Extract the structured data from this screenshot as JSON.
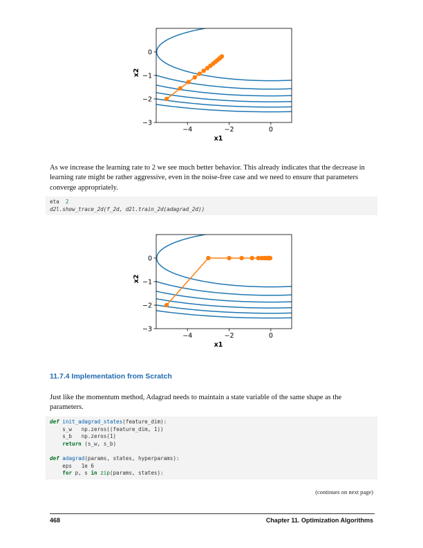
{
  "chart_data": [
    {
      "type": "line",
      "title": "",
      "xlabel": "x1",
      "ylabel": "x2",
      "xlim": [
        -5.5,
        1.0
      ],
      "ylim": [
        -3.0,
        1.0
      ],
      "xticks": [
        "−4",
        "−2",
        "0"
      ],
      "yticks": [
        "0",
        "−1",
        "−2",
        "−3"
      ],
      "contour_levels": [
        3,
        5,
        7,
        9,
        11,
        13
      ],
      "series": [
        {
          "x": [
            -5.0,
            -4.35,
            -3.95,
            -3.65,
            -3.42,
            -3.22,
            -3.05,
            -2.9,
            -2.77,
            -2.66,
            -2.56,
            -2.48,
            -2.41,
            -2.35
          ],
          "y": [
            -2.0,
            -1.55,
            -1.28,
            -1.08,
            -0.93,
            -0.8,
            -0.69,
            -0.59,
            -0.5,
            -0.42,
            -0.35,
            -0.29,
            -0.24,
            -0.19
          ]
        }
      ]
    },
    {
      "type": "line",
      "title": "",
      "xlabel": "x1",
      "ylabel": "x2",
      "xlim": [
        -5.5,
        1.0
      ],
      "ylim": [
        -3.0,
        1.0
      ],
      "xticks": [
        "−4",
        "−2",
        "0"
      ],
      "yticks": [
        "0",
        "−1",
        "−2",
        "−3"
      ],
      "contour_levels": [
        3,
        5,
        7,
        9,
        11,
        13
      ],
      "series": [
        {
          "x": [
            -5.0,
            -3.0,
            -2.0,
            -1.4,
            -0.9,
            -0.6,
            -0.45,
            -0.33,
            -0.24,
            -0.17,
            -0.12,
            -0.08,
            -0.05,
            -0.03
          ],
          "y": [
            -2.0,
            0.0,
            0.0,
            0.0,
            0.0,
            0.0,
            0.0,
            0.0,
            0.0,
            0.0,
            0.0,
            0.0,
            0.0,
            0.0
          ]
        }
      ]
    }
  ],
  "para1": "As we increase the learning rate to 2 we see much better behavior. This already indicates that the decrease in learning rate might be rather aggressive, even in the noise-free case and we need to ensure that parameters converge appropriately.",
  "code1": {
    "line1": {
      "a": "eta ",
      "b": " 2"
    },
    "line2": {
      "a": "d2l",
      "b": ".show_trace_2d(f_2d, d2l.train_2d(adagrad_2d))"
    }
  },
  "heading": "11.7.4 Implementation from Scratch",
  "para2": "Just like the momentum method, Adagrad needs to maintain a state variable of the same shape as the parameters.",
  "code2": {
    "def_kw": "def",
    "fn1": "init_adagrad_states",
    "fn1_args": "(feature_dim):",
    "l2": "    s_w   np.zeros((feature_dim, 1))",
    "l3": "    s_b   np.zeros(1)",
    "ret_kw": "return",
    "l4_rest": " (s_w, s_b)",
    "fn2": "adagrad",
    "fn2_args": "(params, states, hyperparams):",
    "l7": "    eps   1e 6",
    "for_kw": "for",
    "l8_mid": " p, s ",
    "in_kw": "in",
    "zip_kw": "zip",
    "l8_rest": "(params, states):"
  },
  "continues": "(continues on next page)",
  "footer": {
    "page_number": "468",
    "chapter": "Chapter 11.  Optimization Algorithms"
  },
  "colors": {
    "contour": "#1f77b4",
    "trace": "#ff7f0e",
    "heading": "#1f6ab0"
  }
}
